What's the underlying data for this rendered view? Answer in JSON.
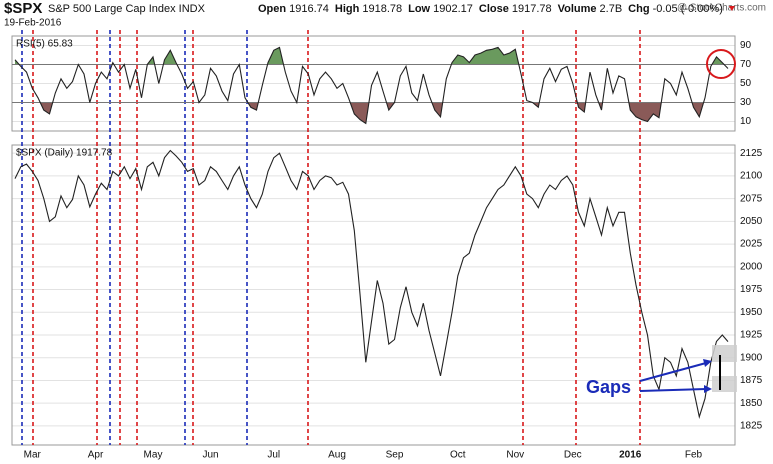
{
  "header": {
    "symbol": "$SPX",
    "name": "S&P 500 Large Cap Index INDX",
    "date": "19-Feb-2016",
    "source": "@ StockCharts.com",
    "quote": [
      {
        "label": "Open",
        "value": "1916.74"
      },
      {
        "label": "High",
        "value": "1918.78"
      },
      {
        "label": "Low",
        "value": "1902.17"
      },
      {
        "label": "Close",
        "value": "1917.78"
      },
      {
        "label": "Volume",
        "value": "2.7B"
      },
      {
        "label": "Chg",
        "value": "-0.05 (-0.00%)"
      }
    ]
  },
  "annotation": "Gaps",
  "chart_data": [
    {
      "type": "line",
      "title": "RSI(5) 65.83",
      "color": "#222222",
      "overbought": 70,
      "oversold": 30,
      "overbought_color": "#6a9a5e",
      "oversold_color": "#8a5a58",
      "ylim": [
        0,
        100
      ],
      "yticks": [
        10,
        30,
        50,
        70,
        90
      ],
      "grid": true,
      "values": [
        75,
        68,
        62,
        45,
        35,
        22,
        18,
        40,
        55,
        45,
        52,
        70,
        60,
        30,
        50,
        62,
        55,
        72,
        62,
        70,
        45,
        65,
        35,
        70,
        78,
        50,
        75,
        85,
        72,
        60,
        45,
        52,
        30,
        38,
        66,
        58,
        42,
        32,
        60,
        70,
        35,
        25,
        22,
        48,
        72,
        85,
        88,
        62,
        42,
        30,
        68,
        60,
        38,
        55,
        62,
        55,
        45,
        50,
        35,
        18,
        12,
        8,
        48,
        62,
        42,
        22,
        30,
        58,
        68,
        40,
        32,
        60,
        38,
        22,
        15,
        55,
        72,
        80,
        78,
        72,
        80,
        82,
        85,
        86,
        88,
        80,
        82,
        86,
        60,
        32,
        30,
        25,
        55,
        66,
        52,
        65,
        68,
        50,
        25,
        20,
        62,
        38,
        22,
        66,
        40,
        58,
        55,
        22,
        15,
        12,
        10,
        18,
        14,
        55,
        50,
        38,
        62,
        45,
        25,
        15,
        35,
        68,
        78,
        72,
        65.83
      ]
    },
    {
      "type": "line",
      "title": "$SPX (Daily) 1917.78",
      "color": "#222222",
      "ylim": [
        1804,
        2134
      ],
      "yticks": [
        1825,
        1850,
        1875,
        1900,
        1925,
        1950,
        1975,
        2000,
        2025,
        2050,
        2075,
        2100,
        2125
      ],
      "grid": true,
      "categories": [
        null,
        null,
        null,
        "Mar",
        null,
        null,
        null,
        null,
        null,
        null,
        null,
        null,
        null,
        null,
        "Apr",
        null,
        null,
        null,
        null,
        null,
        null,
        null,
        null,
        null,
        "May",
        null,
        null,
        null,
        null,
        null,
        null,
        null,
        null,
        null,
        "Jun",
        null,
        null,
        null,
        null,
        null,
        null,
        null,
        null,
        null,
        null,
        "Jul",
        null,
        null,
        null,
        null,
        null,
        null,
        null,
        null,
        null,
        null,
        "Aug",
        null,
        null,
        null,
        null,
        null,
        null,
        null,
        null,
        null,
        "Sep",
        null,
        null,
        null,
        null,
        null,
        null,
        null,
        null,
        null,
        null,
        "Oct",
        null,
        null,
        null,
        null,
        null,
        null,
        null,
        null,
        null,
        "Nov",
        null,
        null,
        null,
        null,
        null,
        null,
        null,
        null,
        null,
        "Dec",
        null,
        null,
        null,
        null,
        null,
        null,
        null,
        null,
        null,
        "2016",
        null,
        null,
        null,
        null,
        null,
        null,
        null,
        null,
        null,
        null,
        "Feb",
        null,
        null,
        null,
        null,
        null,
        null
      ],
      "values": [
        2097,
        2110,
        2113,
        2105,
        2095,
        2075,
        2050,
        2055,
        2078,
        2065,
        2074,
        2100,
        2090,
        2066,
        2080,
        2092,
        2085,
        2105,
        2100,
        2110,
        2097,
        2108,
        2085,
        2110,
        2115,
        2100,
        2120,
        2128,
        2122,
        2115,
        2105,
        2108,
        2090,
        2095,
        2110,
        2105,
        2095,
        2085,
        2100,
        2110,
        2090,
        2075,
        2065,
        2080,
        2105,
        2120,
        2125,
        2110,
        2095,
        2085,
        2105,
        2100,
        2085,
        2095,
        2100,
        2098,
        2090,
        2093,
        2080,
        2040,
        1970,
        1895,
        1940,
        1985,
        1960,
        1915,
        1920,
        1955,
        1978,
        1950,
        1935,
        1960,
        1930,
        1905,
        1880,
        1915,
        1950,
        1990,
        2010,
        2015,
        2035,
        2050,
        2065,
        2075,
        2085,
        2090,
        2100,
        2110,
        2100,
        2080,
        2075,
        2065,
        2080,
        2090,
        2085,
        2095,
        2100,
        2090,
        2060,
        2045,
        2075,
        2055,
        2035,
        2065,
        2045,
        2060,
        2060,
        2015,
        1980,
        1950,
        1925,
        1880,
        1865,
        1900,
        1895,
        1880,
        1910,
        1895,
        1865,
        1835,
        1855,
        1895,
        1918,
        1925,
        1917.78
      ]
    }
  ]
}
